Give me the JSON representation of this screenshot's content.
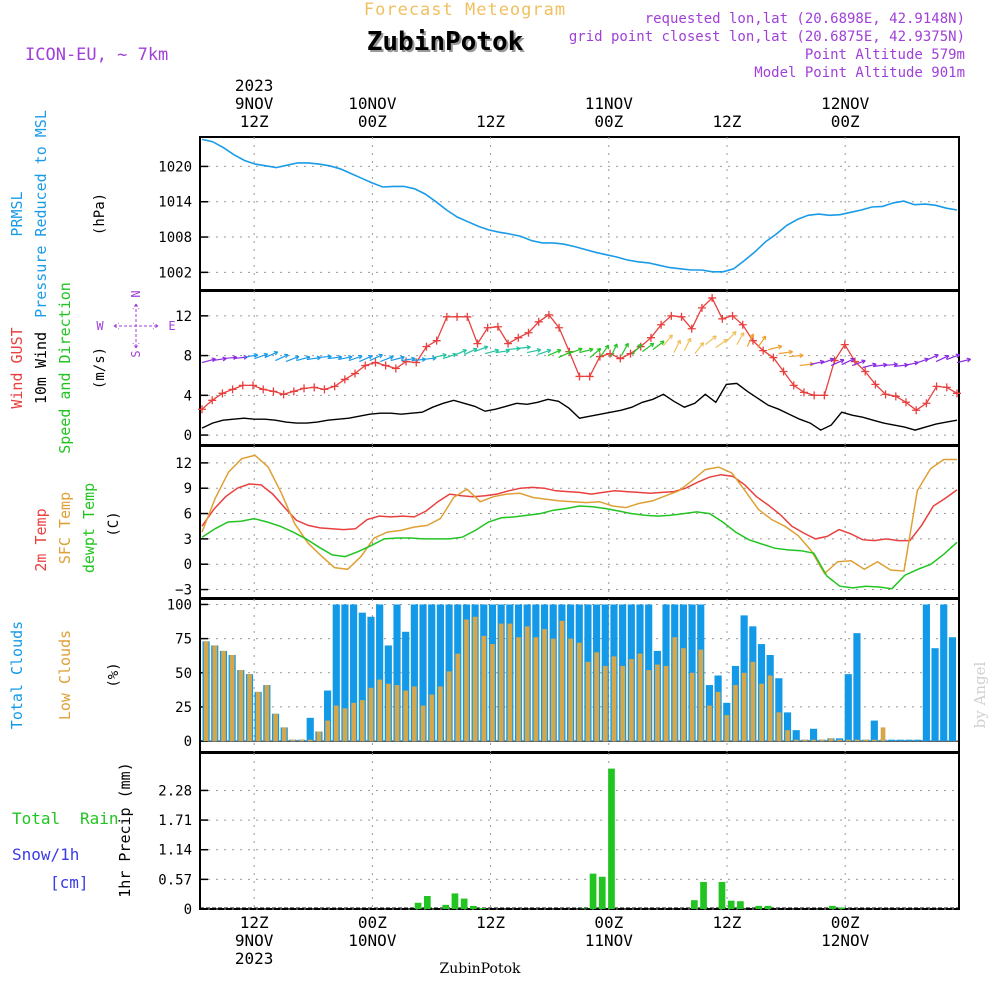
{
  "header": {
    "title_top": "Forecast Meteogram",
    "location": "ZubinPotok",
    "model": "ICON-EU, ~ 7km",
    "requested": "requested lon,lat (20.6898E, 42.9148N)",
    "closest": "grid point closest lon,lat (20.6875E, 42.9375N)",
    "point_alt": "Point Altitude 579m",
    "model_alt": "Model Point Altitude 901m",
    "footer": "ZubinPotok",
    "watermark": "by Angel"
  },
  "time_axis": {
    "hours": 79,
    "top_labels": [
      {
        "h": 0,
        "lines": [
          "2023",
          "9NOV",
          "12Z"
        ]
      },
      {
        "h": 12,
        "lines": [
          "10NOV",
          "00Z"
        ]
      },
      {
        "h": 24,
        "lines": [
          "12Z"
        ]
      },
      {
        "h": 36,
        "lines": [
          "11NOV",
          "00Z"
        ]
      },
      {
        "h": 48,
        "lines": [
          "12Z"
        ]
      },
      {
        "h": 60,
        "lines": [
          "12NOV",
          "00Z"
        ]
      }
    ],
    "bottom_labels": [
      {
        "h": 0,
        "lines": [
          "12Z",
          "9NOV",
          "2023"
        ]
      },
      {
        "h": 12,
        "lines": [
          "00Z",
          "10NOV"
        ]
      },
      {
        "h": 24,
        "lines": [
          "12Z"
        ]
      },
      {
        "h": 36,
        "lines": [
          "00Z",
          "11NOV"
        ]
      },
      {
        "h": 48,
        "lines": [
          "12Z"
        ]
      },
      {
        "h": 60,
        "lines": [
          "00Z",
          "12NOV"
        ]
      }
    ]
  },
  "colors": {
    "pressure": "#1a9be8",
    "gust": "#e8403f",
    "wind": "#000000",
    "green": "#22c422",
    "sfc": "#dea035",
    "cloud_total": "#129ae8",
    "cloud_low": "#d6a64a",
    "rain": "#22c422",
    "snow": "#3a3ae8",
    "purple": "#a040d8",
    "orange": "#f0c060"
  },
  "chart_data": [
    {
      "type": "line",
      "panel": "pressure",
      "ylabels": [
        "PRMSL",
        "Pressure Reduced to MSL",
        "(hPa)"
      ],
      "ylim": [
        999,
        1025
      ],
      "yticks": [
        1002,
        1008,
        1014,
        1020
      ],
      "series": [
        {
          "name": "PRMSL",
          "values": [
            1024.6,
            1024.2,
            1023.2,
            1022.0,
            1021.0,
            1020.4,
            1020.1,
            1019.8,
            1020.2,
            1020.6,
            1020.6,
            1020.4,
            1020.1,
            1019.6,
            1018.8,
            1018.0,
            1017.2,
            1016.5,
            1016.6,
            1016.6,
            1016.2,
            1015.3,
            1014.0,
            1012.6,
            1011.4,
            1010.6,
            1009.8,
            1009.2,
            1008.8,
            1008.5,
            1008.1,
            1007.4,
            1007.0,
            1007.0,
            1006.8,
            1006.4,
            1005.9,
            1005.4,
            1005.0,
            1004.6,
            1004.1,
            1003.8,
            1003.6,
            1003.2,
            1002.8,
            1002.6,
            1002.4,
            1002.4,
            1002.1,
            1002.1,
            1002.6,
            1004.0,
            1005.5,
            1007.2,
            1008.5,
            1010.0,
            1011.0,
            1011.7,
            1011.9,
            1011.7,
            1011.8,
            1012.2,
            1012.6,
            1013.1,
            1013.2,
            1013.8,
            1014.1,
            1013.5,
            1013.6,
            1013.4,
            1012.9,
            1012.6
          ]
        }
      ]
    },
    {
      "type": "line",
      "panel": "wind",
      "ylabels": [
        "Wind GUST",
        "10m Wind",
        "Speed and Direction",
        "(m/s)"
      ],
      "compass": [
        "N",
        "W",
        "E",
        "S"
      ],
      "ylim": [
        -1,
        14.5
      ],
      "yticks": [
        0,
        4,
        8,
        12
      ],
      "series": [
        {
          "name": "Wind GUST",
          "values": [
            2.6,
            3.5,
            4.2,
            4.6,
            5.0,
            5.0,
            4.6,
            4.4,
            4.1,
            4.4,
            4.7,
            4.8,
            4.6,
            4.9,
            5.6,
            6.2,
            7.0,
            7.3,
            7.0,
            6.7,
            7.4,
            7.3,
            8.9,
            9.5,
            11.9,
            11.9,
            11.9,
            9.2,
            10.8,
            10.9,
            9.2,
            9.8,
            10.3,
            11.4,
            12.1,
            10.8,
            8.4,
            5.9,
            5.9,
            7.9,
            8.2,
            7.7,
            8.2,
            8.9,
            9.8,
            11.1,
            12.0,
            11.9,
            10.7,
            12.8,
            13.8,
            11.7,
            12.0,
            11.1,
            9.5,
            8.5,
            7.8,
            6.4,
            5.0,
            4.3,
            4.0,
            4.0,
            7.5,
            9.1,
            7.4,
            6.4,
            5.1,
            4.1,
            3.9,
            3.3,
            2.5,
            3.2,
            4.9,
            4.8,
            4.2
          ]
        },
        {
          "name": "10m Wind",
          "values": [
            0.7,
            1.2,
            1.5,
            1.6,
            1.7,
            1.6,
            1.6,
            1.5,
            1.3,
            1.2,
            1.2,
            1.3,
            1.5,
            1.6,
            1.7,
            1.9,
            2.1,
            2.2,
            2.2,
            2.1,
            2.2,
            2.3,
            2.8,
            3.2,
            3.5,
            3.2,
            2.9,
            2.4,
            2.6,
            2.9,
            3.2,
            3.1,
            3.3,
            3.6,
            3.4,
            2.7,
            1.7,
            1.9,
            2.1,
            2.3,
            2.5,
            2.8,
            3.3,
            3.6,
            4.1,
            3.4,
            2.8,
            3.2,
            4.1,
            3.3,
            5.1,
            5.2,
            4.4,
            3.7,
            3.0,
            2.6,
            2.1,
            1.6,
            1.2,
            0.5,
            1.0,
            2.3,
            2.0,
            1.8,
            1.5,
            1.2,
            1.0,
            0.8,
            0.5,
            0.8,
            1.1,
            1.3,
            1.5
          ]
        },
        {
          "name": "Wind barbs",
          "values": [
            7.3,
            7.5,
            7.7,
            7.7,
            7.8,
            7.7,
            7.8,
            7.5,
            7.4,
            7.5,
            7.6,
            7.8,
            7.7,
            7.6,
            7.5,
            7.4,
            7.5,
            7.4,
            7.5,
            7.5,
            7.5,
            7.6,
            7.8,
            7.7,
            8.0,
            8.1,
            8.4,
            8.2,
            8.3,
            8.6,
            8.7,
            8.3,
            8.1,
            8.0,
            7.8,
            8.2,
            8.3,
            7.8,
            7.9,
            7.9,
            8.0,
            8.1,
            8.4,
            8.6,
            9.0,
            8.3,
            8.5,
            8.2,
            9.1,
            8.8,
            9.4,
            9.1,
            8.9,
            8.8,
            8.6,
            8.2,
            7.9,
            7.0,
            7.1,
            7.2,
            7.0,
            7.1,
            7.0,
            6.8,
            6.9,
            7.0,
            6.9,
            7.0,
            7.2,
            7.5,
            7.4,
            7.6,
            7.3
          ]
        }
      ]
    },
    {
      "type": "line",
      "panel": "temperature",
      "ylabels": [
        "2m Temp",
        "SFC Temp",
        "dewpt Temp",
        "(C)"
      ],
      "ylim": [
        -4,
        14
      ],
      "yticks": [
        -3,
        0,
        3,
        6,
        9,
        12
      ],
      "series": [
        {
          "name": "2m Temp",
          "values": [
            4.5,
            6.5,
            8.0,
            9.0,
            9.5,
            9.4,
            8.3,
            6.7,
            5.2,
            4.6,
            4.3,
            4.2,
            4.1,
            4.2,
            5.3,
            5.7,
            5.6,
            5.7,
            5.6,
            6.3,
            7.4,
            8.3,
            8.1,
            8.0,
            8.1,
            8.3,
            8.7,
            9.0,
            9.1,
            9.0,
            8.7,
            8.6,
            8.5,
            8.3,
            8.5,
            8.7,
            8.6,
            8.5,
            8.4,
            8.5,
            8.6,
            9.0,
            9.7,
            10.3,
            10.6,
            10.4,
            9.4,
            8.0,
            7.0,
            5.9,
            4.5,
            3.7,
            3.0,
            3.3,
            4.1,
            3.6,
            2.9,
            2.8,
            3.0,
            2.8,
            2.8,
            4.6,
            6.9,
            7.8,
            8.8
          ]
        },
        {
          "name": "SFC Temp",
          "values": [
            3.8,
            7.8,
            10.9,
            12.5,
            12.9,
            11.5,
            8.4,
            4.8,
            2.5,
            1.0,
            -0.4,
            -0.6,
            0.9,
            3.1,
            3.8,
            4.0,
            4.4,
            4.6,
            5.4,
            7.9,
            8.9,
            7.4,
            8.0,
            8.3,
            8.4,
            7.9,
            7.7,
            7.5,
            7.4,
            7.3,
            7.4,
            6.9,
            6.7,
            7.2,
            7.5,
            8.1,
            8.7,
            9.9,
            11.2,
            11.5,
            10.8,
            8.7,
            6.5,
            5.3,
            4.5,
            3.4,
            1.6,
            -1.1,
            0.3,
            0.4,
            -0.6,
            0.3,
            -0.7,
            -0.8,
            8.7,
            11.3,
            12.4,
            12.4
          ]
        },
        {
          "name": "dewpt Temp",
          "values": [
            3.2,
            4.2,
            5.0,
            5.1,
            5.4,
            5.0,
            4.5,
            3.8,
            3.0,
            2.0,
            1.1,
            0.9,
            1.5,
            2.2,
            3.0,
            3.1,
            3.1,
            3.0,
            3.0,
            3.0,
            3.2,
            4.0,
            5.0,
            5.5,
            5.6,
            5.8,
            6.0,
            6.4,
            6.6,
            6.9,
            6.8,
            6.6,
            6.3,
            6.0,
            5.8,
            5.7,
            5.8,
            6.0,
            6.2,
            6.0,
            5.0,
            3.8,
            2.9,
            2.4,
            1.9,
            1.7,
            1.6,
            1.3,
            -1.4,
            -2.6,
            -2.8,
            -2.6,
            -2.7,
            -2.9,
            -1.3,
            -0.6,
            0.0,
            1.2,
            2.6
          ]
        }
      ]
    },
    {
      "type": "bar",
      "panel": "clouds",
      "ylabels": [
        "Total Clouds",
        "Low Clouds",
        "(%)"
      ],
      "ylim": [
        -8,
        104
      ],
      "yticks": [
        0,
        25,
        50,
        75,
        100
      ],
      "series": [
        {
          "name": "Total Clouds",
          "values": [
            73,
            70,
            66,
            63,
            52,
            49,
            36,
            41,
            20,
            10,
            1,
            1,
            17,
            7,
            37,
            100,
            100,
            100,
            94,
            91,
            100,
            70,
            100,
            80,
            100,
            100,
            100,
            100,
            100,
            100,
            100,
            100,
            100,
            100,
            100,
            100,
            100,
            100,
            100,
            100,
            100,
            100,
            100,
            100,
            100,
            100,
            100,
            100,
            100,
            100,
            100,
            100,
            66,
            100,
            100,
            100,
            100,
            100,
            41,
            48,
            28,
            55,
            92,
            84,
            71,
            63,
            46,
            21,
            8,
            1,
            9,
            1,
            2,
            2,
            49,
            79,
            1,
            15,
            1,
            1,
            1,
            1,
            1,
            100,
            68,
            100,
            76
          ]
        },
        {
          "name": "Low Clouds",
          "values": [
            73,
            70,
            66,
            63,
            52,
            49,
            36,
            41,
            20,
            10,
            1,
            1,
            1,
            7,
            15,
            26,
            24,
            28,
            30,
            39,
            45,
            42,
            41,
            37,
            40,
            26,
            34,
            40,
            51,
            64,
            89,
            91,
            77,
            71,
            86,
            86,
            76,
            84,
            76,
            82,
            75,
            88,
            75,
            72,
            58,
            65,
            55,
            62,
            55,
            60,
            64,
            52,
            56,
            55,
            76,
            68,
            50,
            67,
            26,
            36,
            19,
            41,
            50,
            58,
            42,
            48,
            21,
            8,
            1,
            1,
            1,
            1,
            2,
            1,
            1,
            1,
            1,
            1,
            10
          ]
        }
      ]
    },
    {
      "type": "bar",
      "panel": "precip",
      "ylabels": [
        "1hr Precip (mm)"
      ],
      "side_labels": [
        "Total",
        "Rain",
        "Snow/1h",
        "[cm]"
      ],
      "ylim": [
        0,
        3.0
      ],
      "yticks": [
        "0",
        "0.57",
        "1.14",
        "1.71",
        "2.28"
      ],
      "series": [
        {
          "name": "Total Rain",
          "values": [
            0,
            0,
            0,
            0,
            0,
            0,
            0,
            0,
            0,
            0,
            0,
            0,
            0,
            0,
            0,
            0,
            0,
            0,
            0,
            0,
            0,
            0,
            0,
            0.12,
            0.25,
            0,
            0.08,
            0.3,
            0.2,
            0.06,
            0.02,
            0,
            0,
            0,
            0,
            0,
            0,
            0,
            0,
            0,
            0,
            0.01,
            0.68,
            0.62,
            2.7,
            0,
            0,
            0,
            0,
            0,
            0,
            0,
            0,
            0.17,
            0.52,
            0,
            0.52,
            0.16,
            0.15,
            0,
            0.06,
            0.06,
            0,
            0,
            0,
            0,
            0,
            0,
            0.06,
            0.03,
            0,
            0,
            0,
            0,
            0,
            0,
            0,
            0,
            0,
            0,
            0,
            0
          ]
        }
      ]
    }
  ]
}
